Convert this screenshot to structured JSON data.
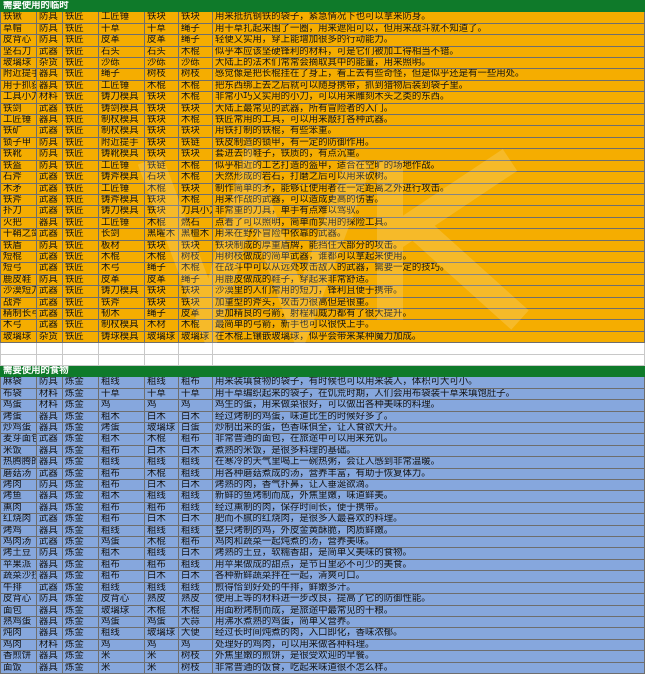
{
  "sections": [
    {
      "title": "需要使用的临时",
      "rows": [
        [
          "铁锹",
          "防具",
          "铁匠",
          "工匠锤",
          "铁块",
          "铁块",
          "用来抵抗钢铁的袋子，紧急情况下也可以拿来防身。"
        ],
        [
          "草帽",
          "防具",
          "铁匠",
          "干草",
          "干草",
          "绳子",
          "用干草扎起来围了一圈，用来遮阳可以，但用来战斗就不知道了。"
        ],
        [
          "皮背心",
          "防具",
          "铁匠",
          "皮革",
          "皮革",
          "绳子",
          "轻便又实用，穿上能增加很多的行动能力。"
        ],
        [
          "坚石刀",
          "武器",
          "铁匠",
          "石头",
          "石头",
          "木棍",
          "似乎本应该坚硬锋利的材料，可是它们被加工得相当不错。"
        ],
        [
          "玻璃球",
          "杂货",
          "铁匠",
          "沙砾",
          "沙砾",
          "沙砾",
          "大陆上的法术们常常会摘取其中的能量，用来照明。"
        ],
        [
          "附近提手",
          "器具",
          "铁匠",
          "绳子",
          "树枝",
          "树枝",
          "感觉像是把长棍挂在了身上，看上去有些奇怪，但是似乎还是有一些用处。"
        ],
        [
          "用于抓获的武器",
          "器具",
          "铁匠",
          "工匠锤",
          "木棍",
          "木棍",
          "把东西绑上去之后就可以随身携带，抓到猎物后装到袋子里。"
        ],
        [
          "工具小刀",
          "材料",
          "铁匠",
          "铸刀模具",
          "铁块",
          "木棍",
          "非常小巧又实用的小刀，可以用来雕刻木头之类的东西。"
        ],
        [
          "铁剑",
          "武器",
          "铁匠",
          "铸剑模具",
          "铁块",
          "铁块",
          "大陆上最常见的武器，所有冒险者的入门。"
        ],
        [
          "工匠锤",
          "器具",
          "铁匠",
          "制杖模具",
          "铁块",
          "木棍",
          "铁匠常用的工具，可以用来敲打各种武器。"
        ],
        [
          "铁矿",
          "武器",
          "铁匠",
          "制杖模具",
          "铁块",
          "铁块",
          "用铁打制的铁棍，有些笨重。"
        ],
        [
          "锁子甲",
          "防具",
          "铁匠",
          "附近提手",
          "铁块",
          "铁链",
          "铁皮制造的锁甲，有一定的防御作用。"
        ],
        [
          "铁靴",
          "防具",
          "铁匠",
          "铸靴模具",
          "铁块",
          "铁块",
          "套进去的鞋子，铁质的，有点沉重。"
        ],
        [
          "铁盔",
          "防具",
          "铁匠",
          "工匠锤",
          "铁链",
          "木棍",
          "似乎相近的工艺打造的盔甲，适合在空旷的场地作战。"
        ],
        [
          "石斧",
          "武器",
          "铁匠",
          "铸斧模具",
          "石块",
          "木棍",
          "天然形成的岩石，打磨之后可以用来砍树。"
        ],
        [
          "木矛",
          "武器",
          "铁匠",
          "工匠锤",
          "木棍",
          "铁块",
          "制作简单的矛，能够让使用者在一定距离之外进行攻击。"
        ],
        [
          "铁斧",
          "武器",
          "铁匠",
          "铸斧模具",
          "铁块",
          "木棍",
          "用来作战的武器，可以造成更高的伤害。"
        ],
        [
          "扑刀",
          "武器",
          "铁匠",
          "铸刀模具",
          "铁块",
          "刀具小刀",
          "非常重的刀具，单手有点难以驾驭。"
        ],
        [
          "火把",
          "器具",
          "铁匠",
          "工匠锤",
          "木棍",
          "燃石",
          "点着了可以照明，简单而实用的探险工具。"
        ],
        [
          "干鞘之剑",
          "武器",
          "铁匠",
          "长剑",
          "黑曜木",
          "黑檀木",
          "用来在野外冒险中依靠的武器。"
        ],
        [
          "铁盾",
          "防具",
          "铁匠",
          "板材",
          "铁块",
          "铁块",
          "铁块制成的厚重盾牌，能挡住大部分的攻击。"
        ],
        [
          "短棍",
          "武器",
          "铁匠",
          "木棍",
          "木棍",
          "树枝",
          "用树枝做成的简单武器，谁都可以拿起来使用。"
        ],
        [
          "短弓",
          "武器",
          "铁匠",
          "木弓",
          "绳子",
          "木棍",
          "在战斗中可以从远处攻击敌人的武器，需要一定的技巧。"
        ],
        [
          "鹿皮鞋",
          "防具",
          "铁匠",
          "皮革",
          "皮革",
          "绳子",
          "用鹿皮做成的鞋子，穿起来非常舒适。"
        ],
        [
          "沙漠短刀",
          "武器",
          "铁匠",
          "铸刀模具",
          "铁块",
          "铁块",
          "沙漠里的人们常用的短刀，锋利且便于携带。"
        ],
        [
          "战斧",
          "武器",
          "铁匠",
          "铁斧",
          "铁块",
          "铁块",
          "加重型的斧头，攻击力很高但是很重。"
        ],
        [
          "精制长弓",
          "武器",
          "铁匠",
          "韧木",
          "绳子",
          "皮革",
          "更加精良的弓箭，射程和威力都有了很大提升。"
        ],
        [
          "木弓",
          "武器",
          "铁匠",
          "制杖模具",
          "木材",
          "木棍",
          "最简单的弓箭，新手也可以很快上手。"
        ],
        [
          "玻璃球",
          "杂货",
          "铁匠",
          "铸球模具",
          "玻璃球",
          "玻璃球",
          "在木棍上镶嵌玻璃球，似乎会带来某种魔力加成。"
        ]
      ]
    },
    {
      "title": "需要使用的食物",
      "rows": [
        [
          "麻袋",
          "防具",
          "炼金",
          "粗线",
          "粗线",
          "粗布",
          "用来装填食物的袋子，有时候也可以用来装人，体积可大可小。"
        ],
        [
          "布袋",
          "材料",
          "炼金",
          "干草",
          "干草",
          "干草",
          "用干草编织起来的袋子，在饥荒时期，人们会用布袋装干草来填饱肚子。"
        ],
        [
          "鸡蛋",
          "材料",
          "炼金",
          "鸡",
          "鸡",
          "鸡",
          "鸡生的蛋，用来做菜很好，可以做出各种美味的料理。"
        ],
        [
          "烤蛋",
          "器具",
          "炼金",
          "粗木",
          "白木",
          "白木",
          "经过烤制的鸡蛋，味道比生的时候好多了。"
        ],
        [
          "炒鸡蛋",
          "器具",
          "炼金",
          "烤蛋",
          "玻璃球",
          "白蛋",
          "炒制出来的蛋，色香味俱全，让人食欲大开。"
        ],
        [
          "麦芽面包",
          "武器",
          "炼金",
          "粗木",
          "木棍",
          "粗布",
          "非常普通的面包，在旅途中可以用来充饥。"
        ],
        [
          "米饭",
          "器具",
          "炼金",
          "粗布",
          "白木",
          "白木",
          "煮熟的米饭，是很多料理的基础。"
        ],
        [
          "热腾腾的粥",
          "器具",
          "炼金",
          "粗线",
          "粗线",
          "粗线",
          "在寒冷的天气里喝上一碗热粥，会让人感到非常温暖。"
        ],
        [
          "蘑菇汤",
          "武器",
          "炼金",
          "粗布",
          "木棍",
          "粗线",
          "用各种蘑菇煮成的汤，营养丰富，有助于恢复体力。"
        ],
        [
          "烤肉",
          "防具",
          "炼金",
          "粗布",
          "白木",
          "白木",
          "烤熟的肉，香气扑鼻，让人垂涎欲滴。"
        ],
        [
          "烤鱼",
          "器具",
          "炼金",
          "粗木",
          "粗线",
          "粗线",
          "新鲜的鱼烤制而成，外焦里嫩，味道鲜美。"
        ],
        [
          "熏肉",
          "器具",
          "炼金",
          "粗布",
          "粗布",
          "粗线",
          "经过熏制的肉，保存时间长，便于携带。"
        ],
        [
          "红烧肉",
          "武器",
          "炼金",
          "粗布",
          "白木",
          "白木",
          "肥而不腻的红烧肉，是很多人最喜欢的料理。"
        ],
        [
          "烤鸡",
          "器具",
          "炼金",
          "粗线",
          "粗线",
          "粗线",
          "整只烤制的鸡，外皮金黄酥脆，肉质鲜嫩。"
        ],
        [
          "鸡肉汤",
          "武器",
          "炼金",
          "鸡蛋",
          "木棍",
          "粗布",
          "鸡肉和蔬菜一起炖煮的汤，营养美味。"
        ],
        [
          "烤土豆",
          "防具",
          "炼金",
          "粗木",
          "粗线",
          "白木",
          "烤熟的土豆，软糯香甜，是简单又美味的食物。"
        ],
        [
          "苹果派",
          "器具",
          "炼金",
          "粗布",
          "粗布",
          "粗线",
          "用苹果做成的甜点，是节日里必不可少的美食。"
        ],
        [
          "蔬菜沙拉",
          "器具",
          "炼金",
          "粗布",
          "白木",
          "白木",
          "各种新鲜蔬菜拌在一起，清爽可口。"
        ],
        [
          "牛排",
          "武器",
          "炼金",
          "粗线",
          "粗线",
          "粗线",
          "煎得恰到好处的牛排，鲜嫩多汁。"
        ],
        [
          "皮背心",
          "防具",
          "炼金",
          "皮背心",
          "熟皮",
          "熟皮",
          "使用上等的材料进一步改良，提高了它的防御性能。"
        ],
        [
          "面包",
          "器具",
          "炼金",
          "玻璃球",
          "木棍",
          "木棍",
          "用面粉烤制而成，是旅途中最常见的干粮。"
        ],
        [
          "熟鸡蛋",
          "器具",
          "炼金",
          "鸡蛋",
          "鸡蛋",
          "大蒜",
          "用沸水煮熟的鸡蛋，简单又营养。"
        ],
        [
          "炖肉",
          "器具",
          "炼金",
          "粗线",
          "玻璃球",
          "大便",
          "经过长时间炖煮的肉，入口即化，香味浓郁。"
        ],
        [
          "鸡肉",
          "材料",
          "炼金",
          "鸡",
          "鸡",
          "鸡",
          "处理好的鸡肉，可以用来做各种料理。"
        ],
        [
          "香煎饼",
          "器具",
          "炼金",
          "米",
          "米",
          "树枝",
          "外焦里嫩的煎饼，是很受欢迎的早餐。"
        ],
        [
          "面饭",
          "器具",
          "炼金",
          "米",
          "米",
          "树枝",
          "非常普通的饭食，吃起来味道很不怎么样。"
        ]
      ]
    }
  ]
}
